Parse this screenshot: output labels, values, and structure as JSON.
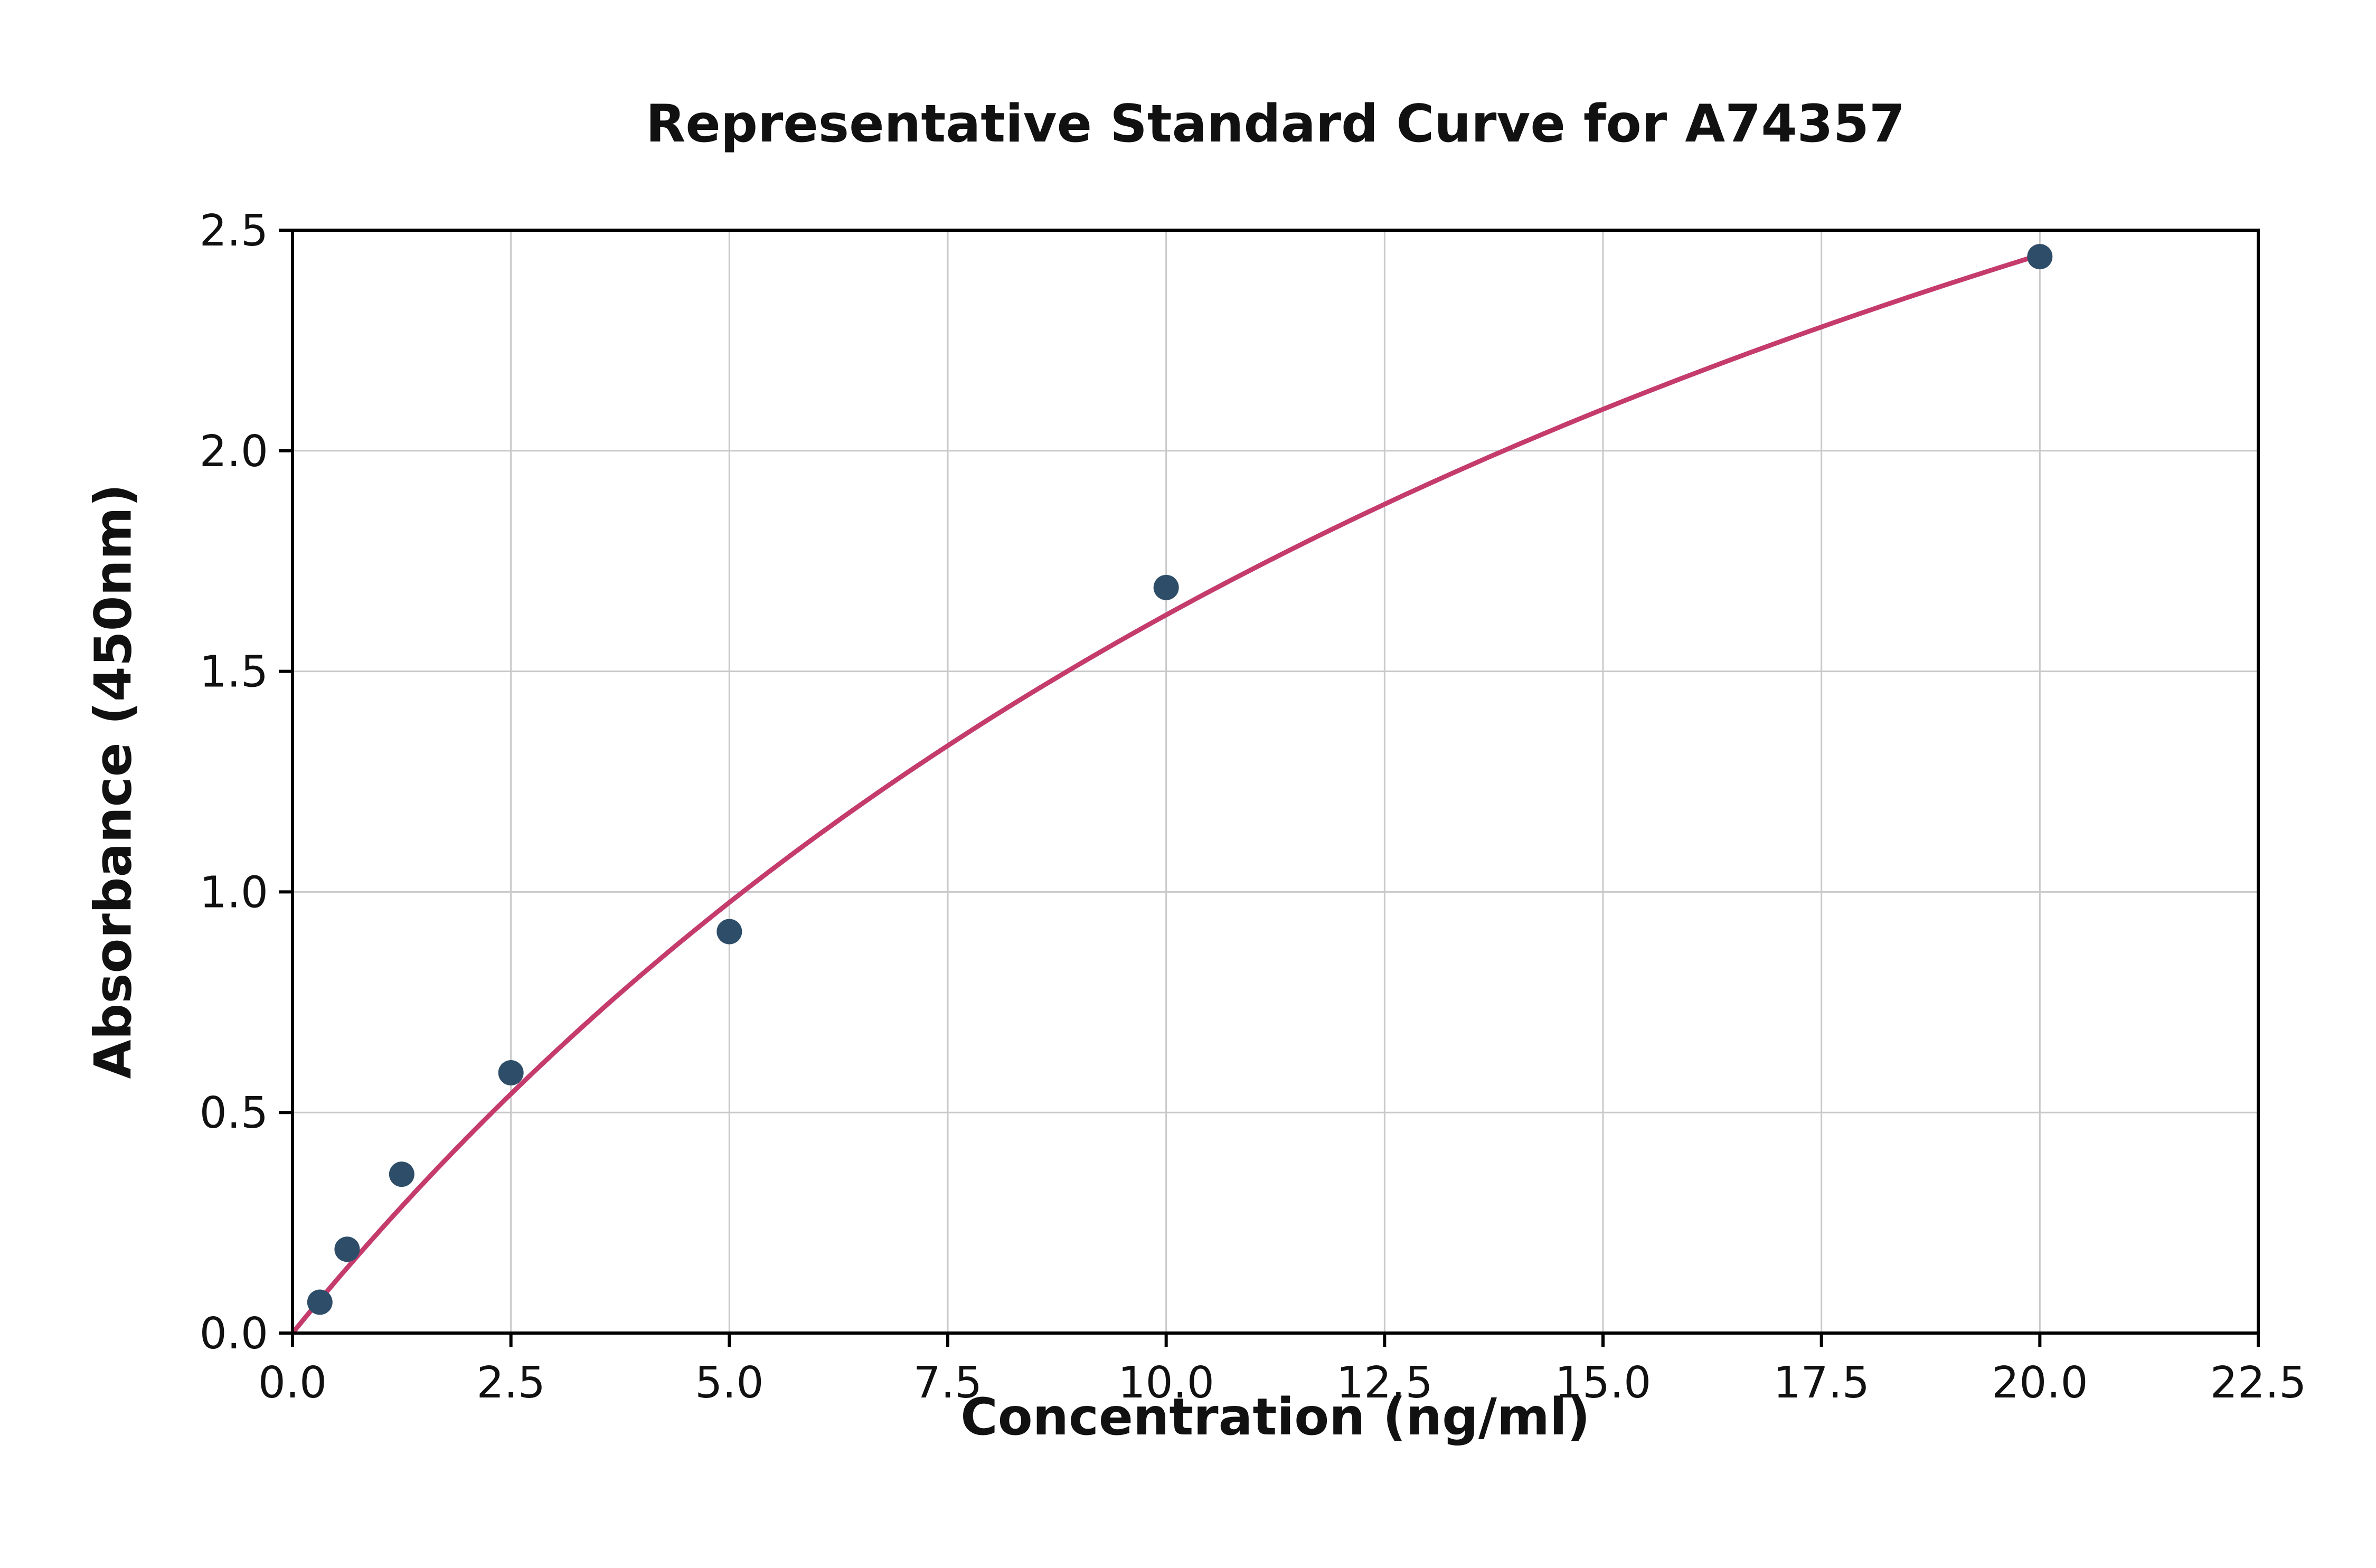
{
  "chart_data": {
    "type": "scatter",
    "title": "Representative Standard Curve for A74357",
    "xlabel": "Concentration (ng/ml)",
    "ylabel": "Absorbance (450nm)",
    "xlim": [
      0,
      22.5
    ],
    "ylim": [
      0,
      2.5
    ],
    "grid": true,
    "legend": "none",
    "x_ticks": [
      0.0,
      2.5,
      5.0,
      7.5,
      10.0,
      12.5,
      15.0,
      17.5,
      20.0,
      22.5
    ],
    "x_tick_labels": [
      "0.0",
      "2.5",
      "5.0",
      "7.5",
      "10.0",
      "12.5",
      "15.0",
      "17.5",
      "20.0",
      "22.5"
    ],
    "y_ticks": [
      0.0,
      0.5,
      1.0,
      1.5,
      2.0,
      2.5
    ],
    "y_tick_labels": [
      "0.0",
      "0.5",
      "1.0",
      "1.5",
      "2.0",
      "2.5"
    ],
    "points": {
      "x": [
        0.313,
        0.625,
        1.25,
        2.5,
        5,
        10,
        20
      ],
      "y": [
        0.07,
        0.19,
        0.36,
        0.59,
        0.91,
        1.69,
        2.44
      ]
    },
    "fit_curve": {
      "model": "michaelis_menten",
      "a": 4.9,
      "b": 20.1,
      "x_start": 0,
      "x_end": 20.05
    },
    "colors": {
      "points": "#2e4d68",
      "curve": "#c43b6c",
      "grid": "#c9c9c9",
      "axis": "#000000",
      "background": "#ffffff"
    }
  }
}
